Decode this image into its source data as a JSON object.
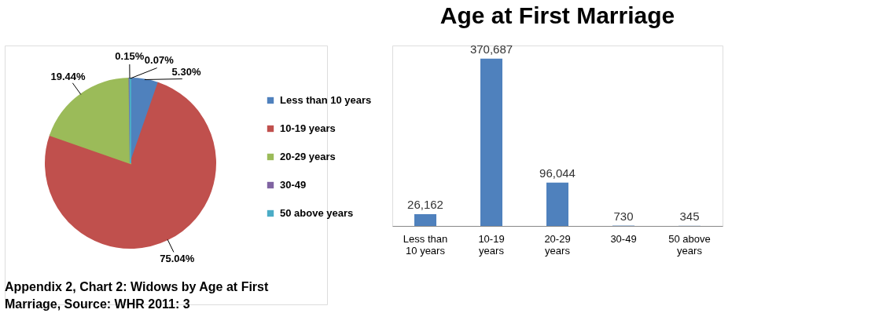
{
  "chart_data": [
    {
      "type": "pie",
      "categories": [
        "Less than 10 years",
        "10-19 years",
        "20-29 years",
        "30-49",
        "50 above years"
      ],
      "values": [
        5.3,
        75.04,
        19.44,
        0.15,
        0.07
      ],
      "colors": [
        "#4f81bd",
        "#c0504d",
        "#9bbb59",
        "#8064a2",
        "#4bacc6"
      ],
      "value_labels": [
        "5.30%",
        "75.04%",
        "19.44%",
        "0.15%",
        "0.07%"
      ],
      "legend": "right",
      "annotations": [
        "Appendix 2, Chart 2: Widows by Age at First Marriage, Source: WHR 2011: 3"
      ]
    },
    {
      "type": "bar",
      "title": "Age at First Marriage",
      "categories": [
        "Less than 10 years",
        "10-19 years",
        "20-29 years",
        "30-49",
        "50 above years"
      ],
      "values": [
        26162,
        370687,
        96044,
        730,
        345
      ],
      "color": "#4f81bd",
      "value_labels": [
        "26,162",
        "370,687",
        "96,044",
        "730",
        "345"
      ],
      "grid": false,
      "tick_labels": "x"
    }
  ]
}
